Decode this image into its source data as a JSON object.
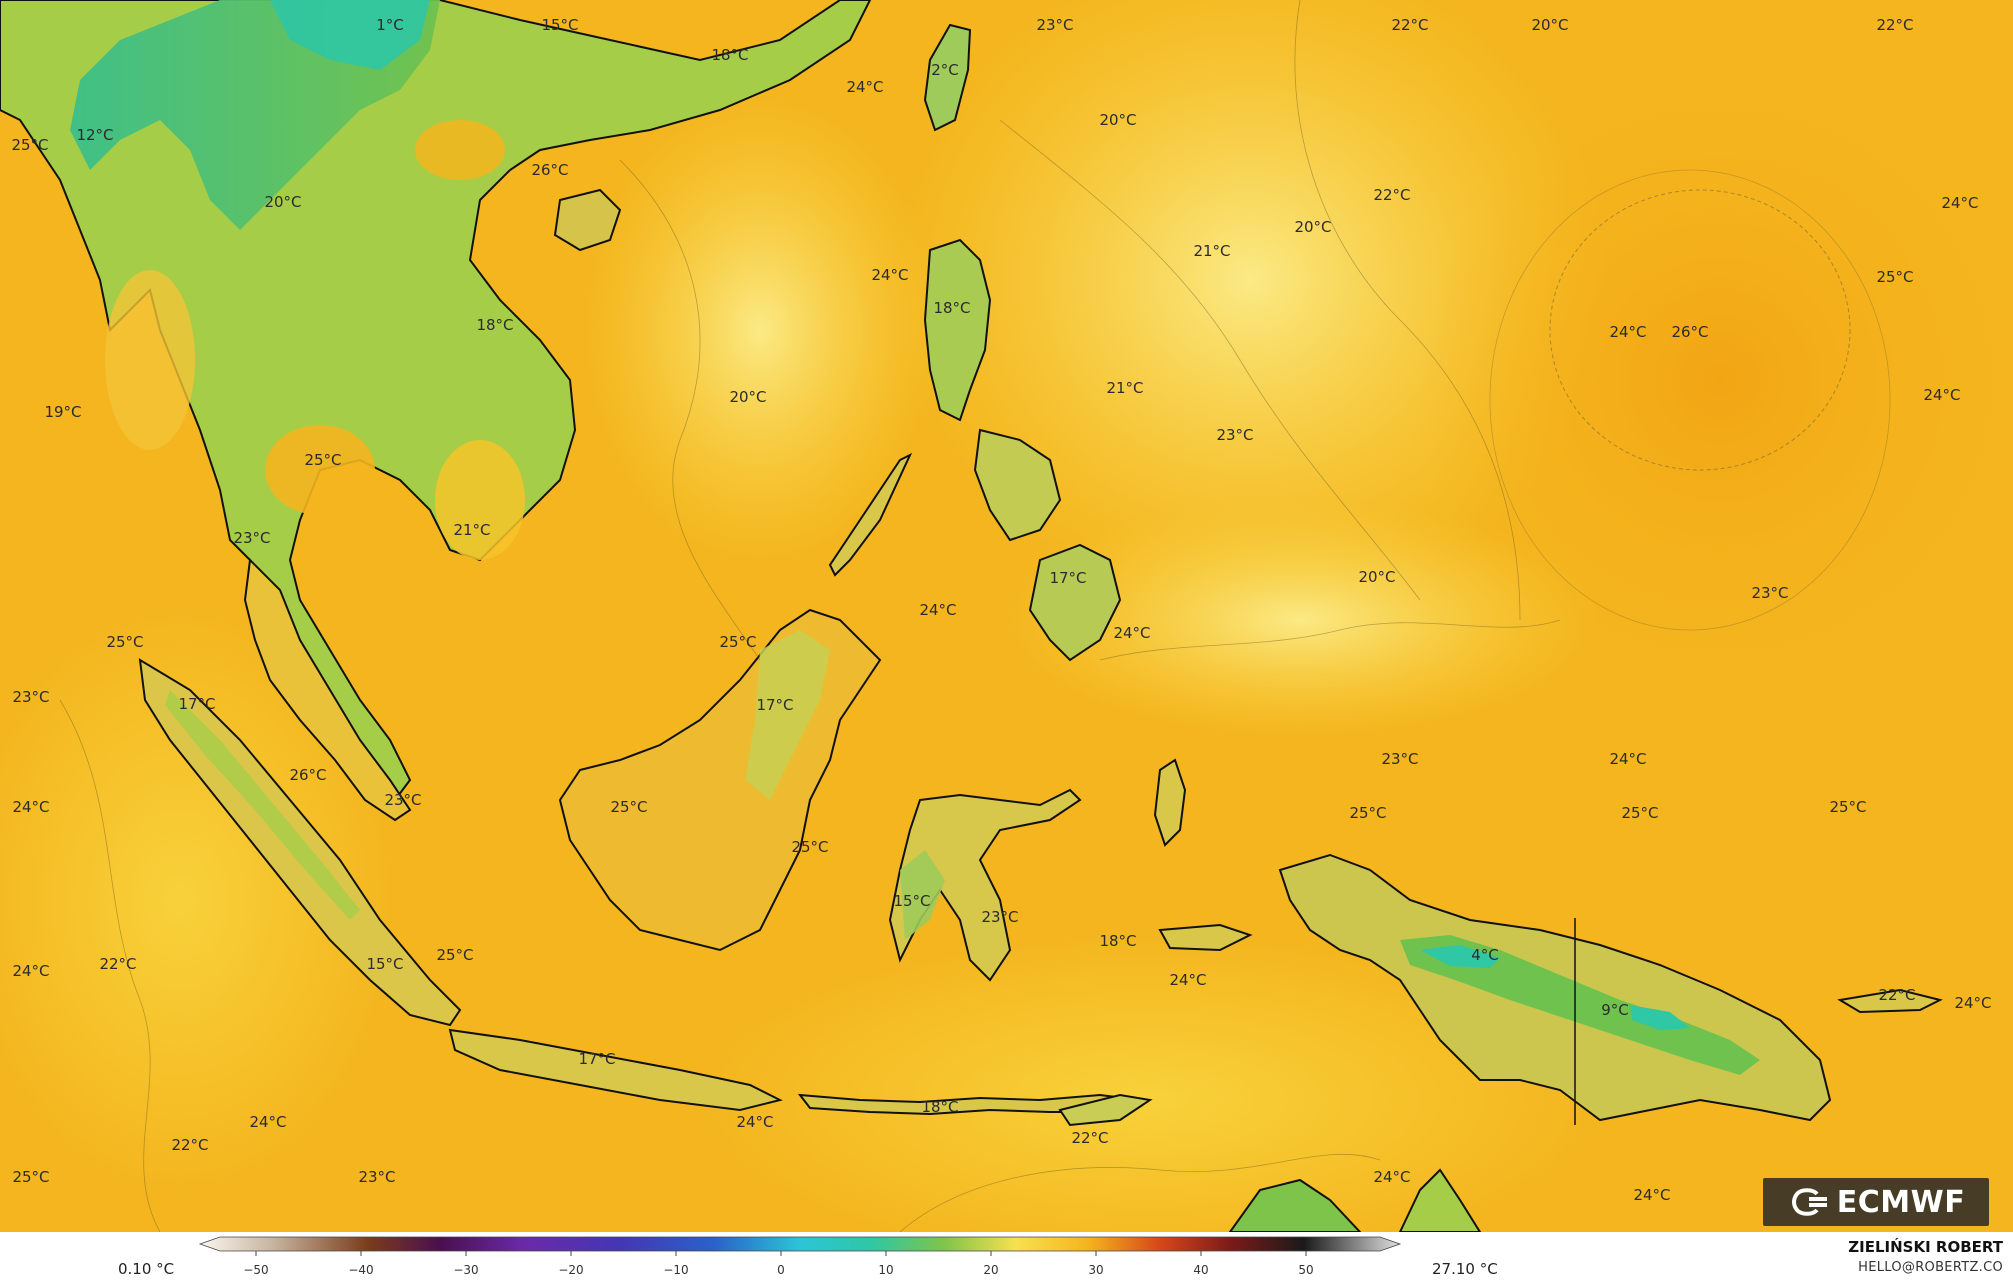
{
  "map": {
    "temperature_labels": [
      "1°C",
      "15°C",
      "18°C",
      "23°C",
      "22°C",
      "20°C",
      "22°C",
      "25°C",
      "12°C",
      "24°C",
      "26°C",
      "20°C",
      "20°C",
      "22°C",
      "20°C",
      "24°C",
      "24°C",
      "2°C",
      "21°C",
      "25°C",
      "18°C",
      "18°C",
      "24°C",
      "26°C",
      "19°C",
      "20°C",
      "21°C",
      "23°C",
      "24°C",
      "25°C",
      "21°C",
      "23°C",
      "20°C",
      "17°C",
      "24°C",
      "24°C",
      "23°C",
      "25°C",
      "25°C",
      "23°C",
      "17°C",
      "17°C",
      "26°C",
      "23°C",
      "24°C",
      "23°C",
      "24°C",
      "25°C",
      "25°C",
      "25°C",
      "25°C",
      "25°C",
      "15°C",
      "23°C",
      "18°C",
      "4°C",
      "24°C",
      "22°C",
      "15°C",
      "25°C",
      "24°C",
      "9°C",
      "22°C",
      "24°C",
      "17°C",
      "18°C",
      "24°C",
      "22°C",
      "22°C",
      "24°C",
      "25°C",
      "23°C",
      "24°C",
      "24°C"
    ]
  },
  "colorbar": {
    "min_label": "0.10 °C",
    "max_label": "27.10 °C",
    "ticks": [
      "−50",
      "−40",
      "−30",
      "−20",
      "−10",
      "0",
      "10",
      "20",
      "30",
      "40",
      "50"
    ]
  },
  "credit": {
    "name": "ZIELIŃSKI ROBERT",
    "email": "HELLO@ROBERTZ.CO"
  },
  "logo": {
    "text": "ECMWF"
  },
  "colors": {
    "ocean_warm": "#f5b21a",
    "ocean_mild": "#f8d640",
    "ocean_cool": "#fae87a",
    "land_green": "#7fc44a",
    "land_cold": "#2fc78f",
    "coastline": "#111111"
  }
}
